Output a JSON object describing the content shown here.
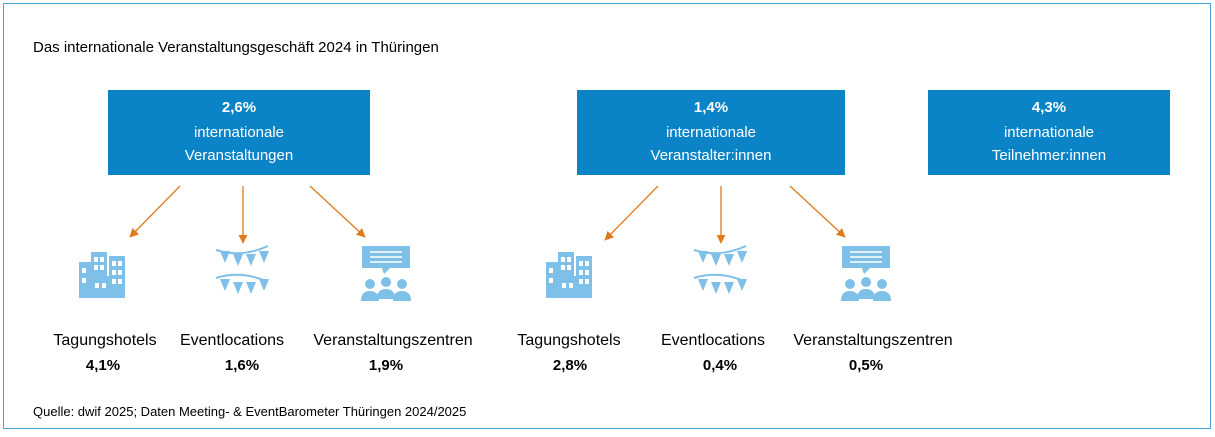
{
  "title": "Das internationale Veranstaltungsgeschäft 2024 in Thüringen",
  "boxes": [
    {
      "value": "2,6%",
      "lines": [
        "internationale",
        "Veranstaltungen"
      ]
    },
    {
      "value": "1,4%",
      "lines": [
        "internationale",
        "Veranstalter:innen"
      ]
    },
    {
      "value": "4,3%",
      "lines": [
        "internationale",
        "Teilnehmer:innen"
      ]
    }
  ],
  "groups": [
    {
      "items": [
        {
          "label": "Tagungshotels",
          "value": "4,1%"
        },
        {
          "label": "Eventlocations",
          "value": "1,6%"
        },
        {
          "label": "Veranstaltungszentren",
          "value": "1,9%"
        }
      ]
    },
    {
      "items": [
        {
          "label": "Tagungshotels",
          "value": "2,8%"
        },
        {
          "label": "Eventlocations",
          "value": "0,4%"
        },
        {
          "label": "Veranstaltungszentren",
          "value": "0,5%"
        }
      ]
    }
  ],
  "source": "Quelle: dwif 2025; Daten Meeting- & EventBarometer Thüringen 2024/2025"
}
